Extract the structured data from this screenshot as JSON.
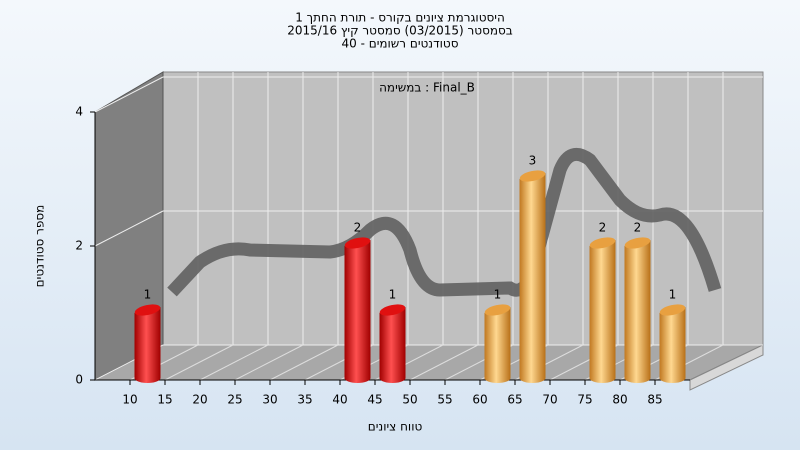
{
  "chart_data": {
    "type": "bar",
    "title": "היסטוגרמת ציונים בקורס - תורת החתך 1",
    "subtitle": [
      "בסמסטר  (03/2015)  סמסטר קיץ 2015/16",
      "סטודנטים רשומים - 40"
    ],
    "annotation": "במשימה : Final_B",
    "x_label": "טווח ציונים",
    "y_label": "מספר סטודנטים",
    "categories": [
      "10",
      "15",
      "20",
      "25",
      "30",
      "35",
      "40",
      "45",
      "50",
      "55",
      "60",
      "65",
      "70",
      "75",
      "80",
      "85"
    ],
    "values": [
      1,
      0,
      0,
      0,
      0,
      0,
      2,
      1,
      0,
      0,
      1,
      3,
      0,
      2,
      2,
      1
    ],
    "colors": [
      "#e01010",
      "#e01010",
      "#e01010",
      "#e01010",
      "#e01010",
      "#e01010",
      "#e01010",
      "#e01010",
      "#e8a040",
      "#e8a040",
      "#e8a040",
      "#e8a040",
      "#e8a040",
      "#e8a040",
      "#e8a040",
      "#e8a040"
    ],
    "ylim": [
      0,
      4
    ],
    "yticks": [
      0,
      2,
      4
    ],
    "grid": true
  }
}
